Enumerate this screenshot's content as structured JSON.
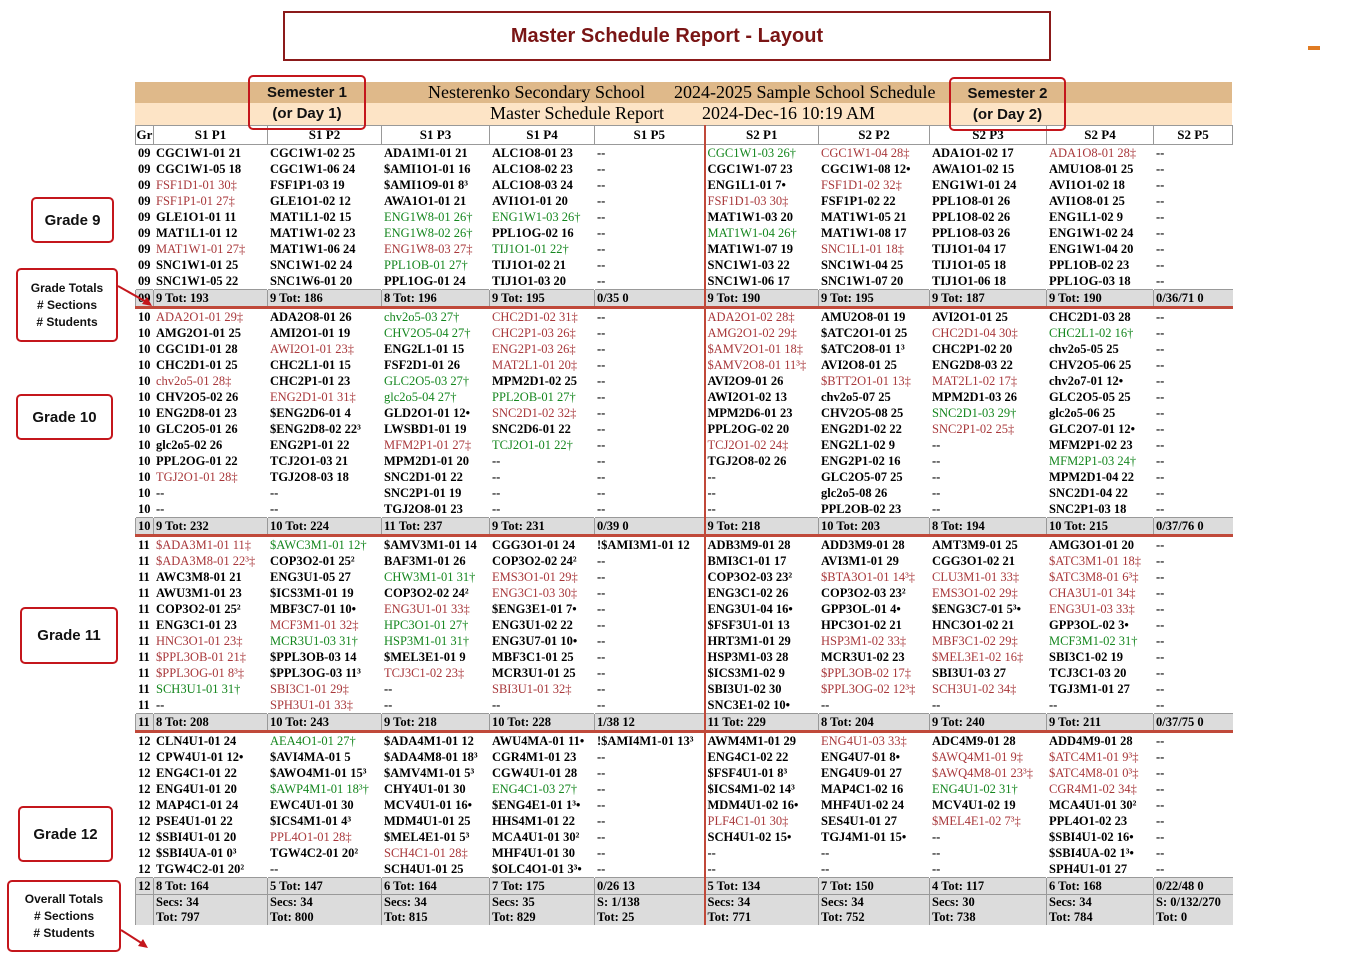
{
  "page_title": "Master Schedule Report - Layout",
  "report_header": {
    "school": "Nesterenko Secondary School",
    "schedule": "2024-2025 Sample School Schedule",
    "report": "Master Schedule Report",
    "datetime": "2024-Dec-16 10:19 AM"
  },
  "annotations": {
    "semester1": [
      "Semester 1",
      "(or Day 1)"
    ],
    "semester2": [
      "Semester 2",
      "(or Day 2)"
    ],
    "grade9": "Grade 9",
    "grade_totals": [
      "Grade Totals",
      "# Sections",
      "# Students"
    ],
    "grade10": "Grade 10",
    "grade11": "Grade 11",
    "grade12": "Grade 12",
    "overall_totals": [
      "Overall Totals",
      "# Sections",
      "# Students"
    ]
  },
  "columns": [
    "Gr",
    "S1 P1",
    "S1 P2",
    "S1 P3",
    "S1 P4",
    "S1 P5",
    "S2 P1",
    "S2 P2",
    "S2 P3",
    "S2 P4",
    "S2 P5"
  ],
  "colors": {
    "over_capacity": "#a8373a",
    "near_capacity": "#14861e",
    "divider": "#c0493a"
  },
  "grades": [
    {
      "gr": "09",
      "rows": [
        [
          "CGC1W1-01 21",
          "CGC1W1-02 25",
          "ADA1M1-01 21",
          "ALC1O8-01 23",
          "--",
          "CGC1W1-03 26†",
          "CGC1W1-04 28‡",
          "ADA1O1-02 17",
          "ADA1O8-01 28‡",
          "--"
        ],
        [
          "CGC1W1-05 18",
          "CGC1W1-06 24",
          "$AMI1O1-01 16",
          "ALC1O8-02 23",
          "--",
          "CGC1W1-07 23",
          "CGC1W1-08 12•",
          "AWA1O1-02 15",
          "AMU1O8-01 25",
          "--"
        ],
        [
          "FSF1D1-01 30‡",
          "FSF1P1-03 19",
          "$AMI1O9-01 8³",
          "ALC1O8-03 24",
          "--",
          "ENG1L1-01 7•",
          "FSF1D1-02 32‡",
          "ENG1W1-01 24",
          "AVI1O1-02 18",
          "--"
        ],
        [
          "FSF1P1-01 27‡",
          "GLE1O1-02 12",
          "AWA1O1-01 21",
          "AVI1O1-01 20",
          "--",
          "FSF1D1-03 30‡",
          "FSF1P1-02 22",
          "PPL1O8-01 26",
          "AVI1O8-01 25",
          "--"
        ],
        [
          "GLE1O1-01 11",
          "MAT1L1-02 15",
          "ENG1W8-01 26†",
          "ENG1W1-03 26†",
          "--",
          "MAT1W1-03 20",
          "MAT1W1-05 21",
          "PPL1O8-02 26",
          "ENG1L1-02 9",
          "--"
        ],
        [
          "MAT1L1-01 12",
          "MAT1W1-02 23",
          "ENG1W8-02 26†",
          "PPL1OG-02 16",
          "--",
          "MAT1W1-04 26†",
          "MAT1W1-08 17",
          "PPL1O8-03 26",
          "ENG1W1-02 24",
          "--"
        ],
        [
          "MAT1W1-01 27‡",
          "MAT1W1-06 24",
          "ENG1W8-03 27‡",
          "TIJ1O1-01 22†",
          "--",
          "MAT1W1-07 19",
          "SNC1L1-01 18‡",
          "TIJ1O1-04 17",
          "ENG1W1-04 20",
          "--"
        ],
        [
          "SNC1W1-01 25",
          "SNC1W1-02 24",
          "PPL1OB-01 27†",
          "TIJ1O1-02 21",
          "--",
          "SNC1W1-03 22",
          "SNC1W1-04 25",
          "TIJ1O1-05 18",
          "PPL1OB-02 23",
          "--"
        ],
        [
          "SNC1W1-05 22",
          "SNC1W6-01 20",
          "PPL1OG-01 24",
          "TIJ1O1-03 20",
          "--",
          "SNC1W1-06 17",
          "SNC1W1-07 20",
          "TIJ1O1-06 18",
          "PPL1OG-03 18",
          "--"
        ]
      ],
      "totals": [
        "9 Tot: 193",
        "9 Tot: 186",
        "8 Tot: 196",
        "9 Tot: 195",
        "0/35 0",
        "9 Tot: 190",
        "9 Tot: 195",
        "9 Tot: 187",
        "9 Tot: 190",
        "0/36/71 0"
      ]
    },
    {
      "gr": "10",
      "rows": [
        [
          "ADA2O1-01 29‡",
          "ADA2O8-01 26",
          "chv2o5-03 27†",
          "CHC2D1-02 31‡",
          "--",
          "ADA2O1-02 28‡",
          "AMU2O8-01 19",
          "AVI2O1-01 25",
          "CHC2D1-03 28",
          "--"
        ],
        [
          "AMG2O1-01 25",
          "AMI2O1-01 19",
          "CHV2O5-04 27†",
          "CHC2P1-03 26‡",
          "--",
          "AMG2O1-02 29‡",
          "$ATC2O1-01 25",
          "CHC2D1-04 30‡",
          "CHC2L1-02 16†",
          "--"
        ],
        [
          "CGC1D1-01 28",
          "AWI2O1-01 23‡",
          "ENG2L1-01 15",
          "ENG2P1-03 26‡",
          "--",
          "$AMV2O1-01 18‡",
          "$ATC2O8-01 1³",
          "CHC2P1-02 20",
          "chv2o5-05 25",
          "--"
        ],
        [
          "CHC2D1-01 25",
          "CHC2L1-01 15",
          "FSF2D1-01 26",
          "MAT2L1-01 20‡",
          "--",
          "$AMV2O8-01 11³‡",
          "AVI2O8-01 25",
          "ENG2D8-03 22",
          "CHV2O5-06 25",
          "--"
        ],
        [
          "chv2o5-01 28‡",
          "CHC2P1-01 23",
          "GLC2O5-03 27†",
          "MPM2D1-02 25",
          "--",
          "AVI2O9-01 26",
          "$BTT2O1-01 13‡",
          "MAT2L1-02 17‡",
          "chv2o7-01 12•",
          "--"
        ],
        [
          "CHV2O5-02 26",
          "ENG2D1-01 31‡",
          "glc2o5-04 27†",
          "PPL2OB-01 27†",
          "--",
          "AWI2O1-02 13",
          "chv2o5-07 25",
          "MPM2D1-03 26",
          "GLC2O5-05 25",
          "--"
        ],
        [
          "ENG2D8-01 23",
          "$ENG2D6-01 4",
          "GLD2O1-01 12•",
          "SNC2D1-02 32‡",
          "--",
          "MPM2D6-01 23",
          "CHV2O5-08 25",
          "SNC2D1-03 29†",
          "glc2o5-06 25",
          "--"
        ],
        [
          "GLC2O5-01 26",
          "$ENG2D8-02 22³",
          "LWSBD1-01 19",
          "SNC2D6-01 22",
          "--",
          "PPL2OG-02 20",
          "ENG2D1-02 22",
          "SNC2P1-02 25‡",
          "GLC2O7-01 12•",
          "--"
        ],
        [
          "glc2o5-02 26",
          "ENG2P1-01 22",
          "MFM2P1-01 27‡",
          "TCJ2O1-01 22†",
          "--",
          "TCJ2O1-02 24‡",
          "ENG2L1-02 9",
          "--",
          "MFM2P1-02 23",
          "--"
        ],
        [
          "PPL2OG-01 22",
          "TCJ2O1-03 21",
          "MPM2D1-01 20",
          "--",
          "--",
          "TGJ2O8-02 26",
          "ENG2P1-02 16",
          "--",
          "MFM2P1-03 24†",
          "--"
        ],
        [
          "TGJ2O1-01 28‡",
          "TGJ2O8-03 18",
          "SNC2D1-01 22",
          "--",
          "--",
          "--",
          "GLC2O5-07 25",
          "--",
          "MPM2D1-04 22",
          "--"
        ],
        [
          "--",
          "--",
          "SNC2P1-01 19",
          "--",
          "--",
          "--",
          "glc2o5-08 26",
          "--",
          "SNC2D1-04 22",
          "--"
        ],
        [
          "--",
          "--",
          "TGJ2O8-01 23",
          "--",
          "--",
          "--",
          "PPL2OB-02 23",
          "--",
          "SNC2P1-03 18",
          "--"
        ]
      ],
      "totals": [
        "9 Tot: 232",
        "10 Tot: 224",
        "11 Tot: 237",
        "9 Tot: 231",
        "0/39 0",
        "9 Tot: 218",
        "10 Tot: 203",
        "8 Tot: 194",
        "10 Tot: 215",
        "0/37/76 0"
      ]
    },
    {
      "gr": "11",
      "rows": [
        [
          "$ADA3M1-01 11‡",
          "$AWC3M1-01 12†",
          "$AMV3M1-01 14",
          "CGG3O1-01 24",
          "!$AMI3M1-01 12",
          "ADB3M9-01 28",
          "ADD3M9-01 28",
          "AMT3M9-01 25",
          "AMG3O1-01 20",
          "--"
        ],
        [
          "$ADA3M8-01 22³‡",
          "COP3O2-01 25²",
          "BAF3M1-01 26",
          "COP3O2-02 24²",
          "--",
          "BMI3C1-01 17",
          "AVI3M1-01 29",
          "CGG3O1-02 21",
          "$ATC3M1-01 18‡",
          "--"
        ],
        [
          "AWC3M8-01 21",
          "ENG3U1-05 27",
          "CHW3M1-01 31†",
          "EMS3O1-01 29‡",
          "--",
          "COP3O2-03 23²",
          "$BTA3O1-01 14³‡",
          "CLU3M1-01 33‡",
          "$ATC3M8-01 6³‡",
          "--"
        ],
        [
          "AWU3M1-01 23",
          "$ICS3M1-01 19",
          "COP3O2-02 24²",
          "ENG3C1-03 30‡",
          "--",
          "ENG3C1-02 26",
          "COP3O2-03 23²",
          "EMS3O1-02 29‡",
          "CHA3U1-01 34‡",
          "--"
        ],
        [
          "COP3O2-01 25²",
          "MBF3C7-01 10•",
          "ENG3U1-01 33‡",
          "$ENG3E1-01 7•",
          "--",
          "ENG3U1-04 16•",
          "GPP3OL-01 4•",
          "$ENG3C7-01 5³•",
          "ENG3U1-03 33‡",
          "--"
        ],
        [
          "ENG3C1-01 23",
          "MCF3M1-01 32‡",
          "HPC3O1-01 27†",
          "ENG3U1-02 22",
          "--",
          "$FSF3U1-01 13",
          "HPC3O1-02 21",
          "HNC3O1-02 21",
          "GPP3OL-02 3•",
          "--"
        ],
        [
          "HNC3O1-01 23‡",
          "MCR3U1-03 31†",
          "HSP3M1-01 31†",
          "ENG3U7-01 10•",
          "--",
          "HRT3M1-01 29",
          "HSP3M1-02 33‡",
          "MBF3C1-02 29‡",
          "MCF3M1-02 31†",
          "--"
        ],
        [
          "$PPL3OB-01 21‡",
          "$PPL3OB-03 14",
          "$MEL3E1-01 9",
          "MBF3C1-01 25",
          "--",
          "HSP3M1-03 28",
          "MCR3U1-02 23",
          "$MEL3E1-02 16‡",
          "SBI3C1-02 19",
          "--"
        ],
        [
          "$PPL3OG-01 8³‡",
          "$PPL3OG-03 11³",
          "TCJ3C1-02 23‡",
          "MCR3U1-01 25",
          "--",
          "$ICS3M1-02 9",
          "$PPL3OB-02 17‡",
          "SBI3U1-03 27",
          "TCJ3C1-03 20",
          "--"
        ],
        [
          "SCH3U1-01 31†",
          "SBI3C1-01 29‡",
          "--",
          "SBI3U1-01 32‡",
          "--",
          "SBI3U1-02 30",
          "$PPL3OG-02 12³‡",
          "SCH3U1-02 34‡",
          "TGJ3M1-01 27",
          "--"
        ],
        [
          "--",
          "SPH3U1-01 33‡",
          "--",
          "--",
          "--",
          "SNC3E1-02 10•",
          "--",
          "--",
          "--",
          "--"
        ]
      ],
      "totals": [
        "8 Tot: 208",
        "10 Tot: 243",
        "9 Tot: 218",
        "10 Tot: 228",
        "1/38 12",
        "11 Tot: 229",
        "8 Tot: 204",
        "9 Tot: 240",
        "9 Tot: 211",
        "0/37/75 0"
      ]
    },
    {
      "gr": "12",
      "rows": [
        [
          "CLN4U1-01 24",
          "AEA4O1-01 27†",
          "$ADA4M1-01 12",
          "AWU4MA-01 11•",
          "!$AMI4M1-01 13³",
          "AWM4M1-01 29",
          "ENG4U1-03 33‡",
          "ADC4M9-01 28",
          "ADD4M9-01 28",
          "--"
        ],
        [
          "CPW4U1-01 12•",
          "$AVI4MA-01 5",
          "$ADA4M8-01 18³",
          "CGR4M1-01 23",
          "--",
          "ENG4C1-02 22",
          "ENG4U7-01 8•",
          "$AWQ4M1-01 9‡",
          "$ATC4M1-01 9³‡",
          "--"
        ],
        [
          "ENG4C1-01 22",
          "$AWO4M1-01 15³",
          "$AMV4M1-01 5³",
          "CGW4U1-01 28",
          "--",
          "$FSF4U1-01 8³",
          "ENG4U9-01 27",
          "$AWQ4M8-01 23³‡",
          "$ATC4M8-01 0³‡",
          "--"
        ],
        [
          "ENG4U1-01 20",
          "$AWP4M1-01 18³†",
          "CHY4U1-01 30",
          "ENG4C1-03 27†",
          "--",
          "$ICS4M1-02 14³",
          "MAP4C1-02 16",
          "ENG4U1-02 31†",
          "CGR4M1-02 34‡",
          "--"
        ],
        [
          "MAP4C1-01 24",
          "EWC4U1-01 30",
          "MCV4U1-01 16•",
          "$ENG4E1-01 1³•",
          "--",
          "MDM4U1-02 16•",
          "MHF4U1-02 24",
          "MCV4U1-02 19",
          "MCA4U1-01 30²",
          "--"
        ],
        [
          "PSE4U1-01 22",
          "$ICS4M1-01 4³",
          "MDM4U1-01 25",
          "HHS4M1-01 22",
          "--",
          "PLF4C1-01 30‡",
          "SES4U1-01 27",
          "$MEL4E1-02 7³‡",
          "PPL4O1-02 23",
          "--"
        ],
        [
          "$SBI4U1-01 20",
          "PPL4O1-01 28‡",
          "$MEL4E1-01 5³",
          "MCA4U1-01 30²",
          "--",
          "SCH4U1-02 15•",
          "TGJ4M1-01 15•",
          "--",
          "$SBI4U1-02 16•",
          "--"
        ],
        [
          "$SBI4UA-01 0³",
          "TGW4C2-01 20²",
          "SCH4C1-01 28‡",
          "MHF4U1-01 30",
          "--",
          "--",
          "--",
          "--",
          "$SBI4UA-02 1³•",
          "--"
        ],
        [
          "TGW4C2-01 20²",
          "--",
          "SCH4U1-01 25",
          "$OLC4O1-01 3³•",
          "--",
          "--",
          "--",
          "--",
          "SPH4U1-01 27",
          "--"
        ]
      ],
      "totals": [
        "8 Tot: 164",
        "5 Tot: 147",
        "6 Tot: 164",
        "7 Tot: 175",
        "0/26 13",
        "5 Tot: 134",
        "7 Tot: 150",
        "4 Tot: 117",
        "6 Tot: 168",
        "0/22/48 0"
      ]
    }
  ],
  "overall": [
    [
      "Secs: 34",
      "Tot: 797"
    ],
    [
      "Secs: 34",
      "Tot: 800"
    ],
    [
      "Secs: 34",
      "Tot: 815"
    ],
    [
      "Secs: 35",
      "Tot: 829"
    ],
    [
      "S: 1/138",
      "Tot: 25"
    ],
    [
      "Secs: 34",
      "Tot: 771"
    ],
    [
      "Secs: 34",
      "Tot: 752"
    ],
    [
      "Secs: 30",
      "Tot: 738"
    ],
    [
      "Secs: 34",
      "Tot: 784"
    ],
    [
      "S: 0/132/270",
      "Tot: 0"
    ]
  ]
}
